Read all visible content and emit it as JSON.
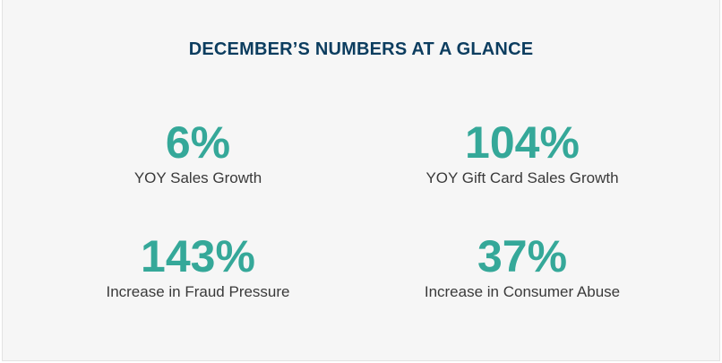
{
  "title": "DECEMBER’S NUMBERS AT A GLANCE",
  "stats": [
    {
      "value": "6%",
      "label": "YOY Sales Growth"
    },
    {
      "value": "104%",
      "label": "YOY Gift Card Sales Growth"
    },
    {
      "value": "143%",
      "label": "Increase in Fraud Pressure"
    },
    {
      "value": "37%",
      "label": "Increase in Consumer Abuse"
    }
  ],
  "colors": {
    "title": "#0c3d5f",
    "value": "#35a899",
    "label": "#3a3a3a",
    "background": "#f6f6f6"
  }
}
